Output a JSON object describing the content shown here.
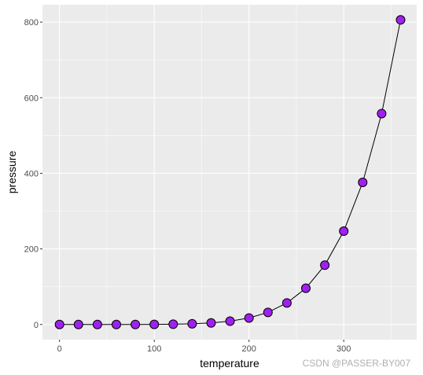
{
  "chart_data": {
    "type": "line",
    "xlabel": "temperature",
    "ylabel": "pressure",
    "x": [
      0,
      20,
      40,
      60,
      80,
      100,
      120,
      140,
      160,
      180,
      200,
      220,
      240,
      260,
      280,
      300,
      320,
      340,
      360
    ],
    "series": [
      {
        "values": [
          0.0002,
          0.0012,
          0.006,
          0.03,
          0.09,
          0.27,
          0.75,
          1.85,
          4.2,
          8.8,
          17.3,
          32.1,
          57,
          96,
          157,
          247,
          376,
          558,
          806
        ],
        "line_color": "#000000",
        "point_fill": "#a020f0",
        "point_stroke": "#000000"
      }
    ],
    "xlim": [
      -18,
      377
    ],
    "ylim": [
      -40,
      846
    ],
    "xticks": [
      0,
      100,
      200,
      300
    ],
    "yticks": [
      0,
      200,
      400,
      600,
      800
    ],
    "grid": true,
    "panel_background": "#ebebeb",
    "grid_color": "#ffffff"
  },
  "watermark": "CSDN @PASSER-BY007"
}
